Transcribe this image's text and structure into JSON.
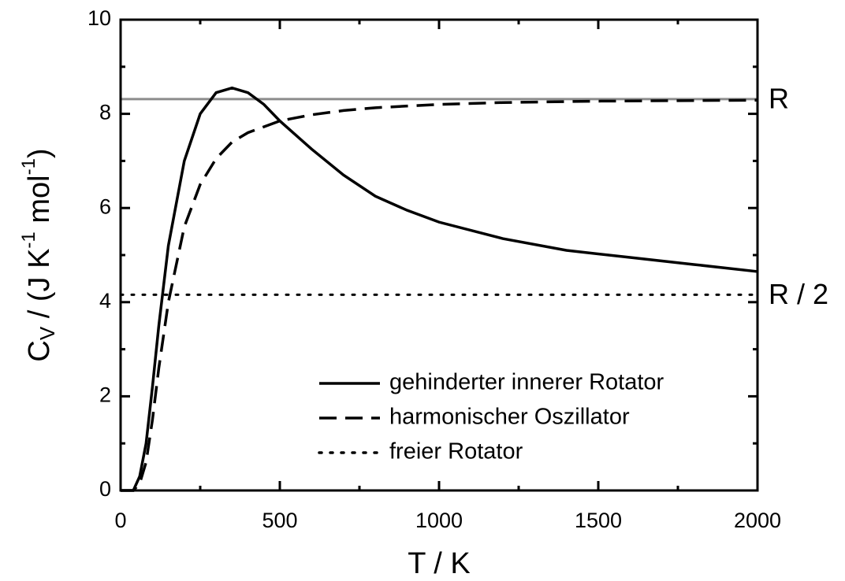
{
  "chart_data": {
    "type": "line",
    "xlabel": "T / K",
    "ylabel": [
      "C",
      "V",
      " / (J K",
      "-1",
      " mol",
      "-1",
      ")"
    ],
    "xlim": [
      0,
      2000
    ],
    "ylim": [
      0,
      10
    ],
    "xticks": [
      0,
      500,
      1000,
      1500,
      2000
    ],
    "yticks": [
      0,
      2,
      4,
      6,
      8,
      10
    ],
    "xminorticks": [
      250,
      750,
      1250,
      1750
    ],
    "yminorticks": [
      1,
      3,
      5,
      7,
      9
    ],
    "series": [
      {
        "name": "gehinderter innerer Rotator",
        "color": "#000000",
        "dash": "solid",
        "x": [
          0,
          40,
          60,
          80,
          100,
          120,
          150,
          200,
          250,
          300,
          350,
          400,
          450,
          500,
          600,
          700,
          800,
          900,
          1000,
          1200,
          1400,
          1600,
          1800,
          2000
        ],
        "values": [
          0,
          0,
          0.3,
          1.0,
          2.2,
          3.5,
          5.2,
          7.0,
          8.0,
          8.45,
          8.55,
          8.45,
          8.2,
          7.85,
          7.25,
          6.7,
          6.25,
          5.95,
          5.7,
          5.35,
          5.1,
          4.95,
          4.8,
          4.65
        ]
      },
      {
        "name": "harmonischer Oszillator",
        "color": "#000000",
        "dash": "dashed",
        "x": [
          0,
          40,
          60,
          80,
          100,
          120,
          150,
          200,
          250,
          300,
          350,
          400,
          500,
          600,
          700,
          800,
          1000,
          1200,
          1500,
          2000
        ],
        "values": [
          0,
          0,
          0.15,
          0.6,
          1.5,
          2.6,
          4.0,
          5.6,
          6.5,
          7.05,
          7.4,
          7.6,
          7.85,
          7.98,
          8.07,
          8.13,
          8.2,
          8.24,
          8.27,
          8.29
        ]
      },
      {
        "name": "freier Rotator",
        "color": "#000000",
        "dash": "dotted",
        "x": [
          0,
          2000
        ],
        "values": [
          4.157,
          4.157
        ]
      }
    ],
    "annotations": [
      {
        "text": "R",
        "y": 8.314,
        "line_color": "#8c8c8c"
      },
      {
        "text": "R / 2",
        "y": 4.157
      }
    ],
    "legend": "lower right"
  }
}
